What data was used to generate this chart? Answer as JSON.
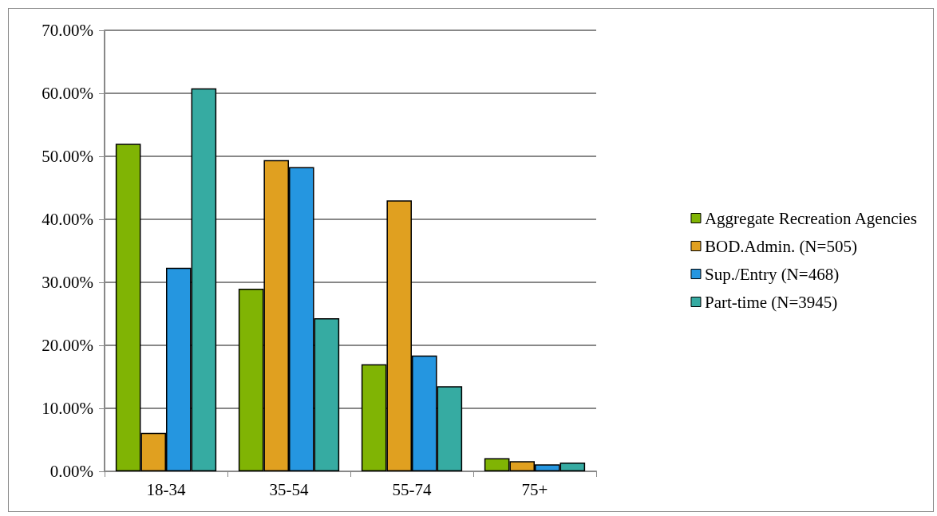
{
  "chart_data": {
    "type": "bar",
    "categories": [
      "18-34",
      "35-54",
      "55-74",
      "75+"
    ],
    "series": [
      {
        "name": "Aggregate Recreation Agencies",
        "color": "#80b404",
        "values": [
          52,
          29,
          17,
          2.1
        ]
      },
      {
        "name": "BOD.Admin. (N=505)",
        "color": "#e0a020",
        "values": [
          6.1,
          49.4,
          43,
          1.6
        ]
      },
      {
        "name": "Sup./Entry (N=468)",
        "color": "#2596e0",
        "values": [
          32.3,
          48.3,
          18.4,
          1.1
        ]
      },
      {
        "name": "Part-time (N=3945)",
        "color": "#36aba2",
        "values": [
          60.8,
          24.3,
          13.5,
          1.4
        ]
      }
    ],
    "ylim": [
      0,
      70
    ],
    "yticks": [
      {
        "value": 0,
        "label": "0.00%"
      },
      {
        "value": 10,
        "label": "10.00%"
      },
      {
        "value": 20,
        "label": "20.00%"
      },
      {
        "value": 30,
        "label": "30.00%"
      },
      {
        "value": 40,
        "label": "40.00%"
      },
      {
        "value": 50,
        "label": "50.00%"
      },
      {
        "value": 60,
        "label": "60.00%"
      },
      {
        "value": 70,
        "label": "70.00%"
      }
    ],
    "grid": "y",
    "legend": "right"
  }
}
